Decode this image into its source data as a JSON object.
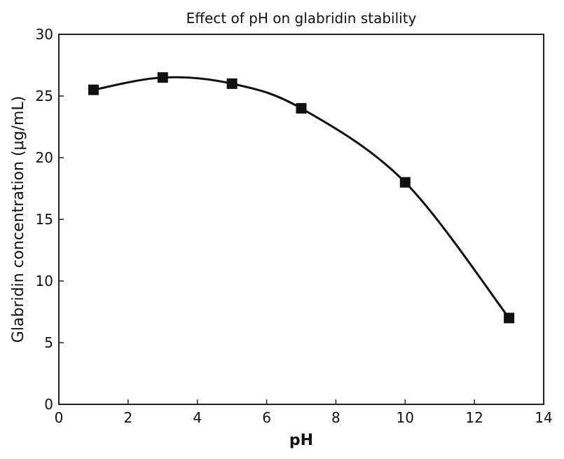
{
  "chart_data": {
    "type": "scatter",
    "title": "Effect of pH on glabridin stability",
    "xlabel": "pH",
    "ylabel": "Glabridin concentration (μg/mL)",
    "xlim": [
      0,
      14
    ],
    "ylim": [
      0,
      30
    ],
    "x_ticks": [
      "0",
      "2",
      "4",
      "6",
      "8",
      "10",
      "12",
      "14"
    ],
    "y_ticks": [
      "0",
      "5",
      "10",
      "15",
      "20",
      "25",
      "30"
    ],
    "grid": false,
    "series": [
      {
        "marker": "square",
        "color": "#111111",
        "x": [
          1,
          3,
          5,
          7,
          10,
          13
        ],
        "y": [
          25.5,
          26.5,
          26.0,
          24.0,
          18.0,
          7.0
        ],
        "fit_line": "smooth-curve"
      }
    ]
  }
}
